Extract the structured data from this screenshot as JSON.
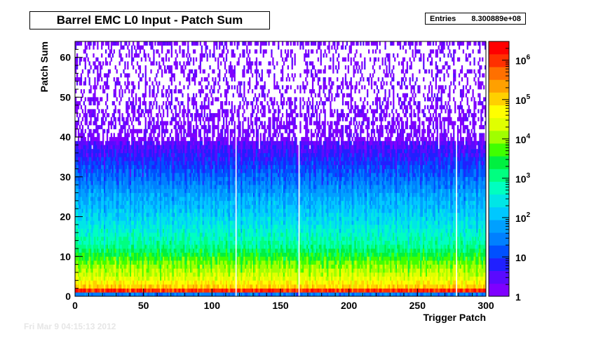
{
  "title": "Barrel EMC L0 Input - Patch Sum",
  "stats": {
    "label": "Entries",
    "value": "8.300889e+08"
  },
  "footer_stamp": "Fri Mar  9 04:15:13 2012",
  "chart_data": {
    "type": "heatmap",
    "title": "Barrel EMC L0 Input - Patch Sum",
    "xlabel": "Trigger Patch",
    "ylabel": "Patch Sum",
    "xlim": [
      0,
      300
    ],
    "ylim": [
      0,
      64
    ],
    "x_bins": 300,
    "y_bins": 64,
    "z_scale": "log",
    "zlim": [
      1,
      3000000
    ],
    "x_ticks": [
      0,
      50,
      100,
      150,
      200,
      250,
      300
    ],
    "y_ticks": [
      0,
      10,
      20,
      30,
      40,
      50,
      60
    ],
    "z_ticks": [
      {
        "value": 1,
        "label": "1"
      },
      {
        "value": 10,
        "label": "10"
      },
      {
        "value": 100,
        "label": "10",
        "exp": "2"
      },
      {
        "value": 1000,
        "label": "10",
        "exp": "3"
      },
      {
        "value": 10000,
        "label": "10",
        "exp": "4"
      },
      {
        "value": 100000,
        "label": "10",
        "exp": "5"
      },
      {
        "value": 1000000,
        "label": "10",
        "exp": "6"
      }
    ],
    "empty_patches": [
      117,
      163,
      278
    ],
    "row_profile": [
      {
        "patch_sum": 0,
        "count": 40
      },
      {
        "patch_sum": 1,
        "count": 1500000
      },
      {
        "patch_sum": 2,
        "count": 150000
      },
      {
        "patch_sum": 4,
        "count": 40000
      },
      {
        "patch_sum": 8,
        "count": 10000
      },
      {
        "patch_sum": 12,
        "count": 1500
      },
      {
        "patch_sum": 18,
        "count": 350
      },
      {
        "patch_sum": 25,
        "count": 90
      },
      {
        "patch_sum": 30,
        "count": 25
      },
      {
        "patch_sum": 35,
        "count": 8
      },
      {
        "patch_sum": 40,
        "count": 2.5
      },
      {
        "patch_sum": 50,
        "count": 1.3
      },
      {
        "patch_sum": 62,
        "count": 1
      },
      {
        "patch_sum": 63,
        "count": 3
      }
    ],
    "palette": [
      "#7f00ff",
      "#5a0aff",
      "#2020ff",
      "#0050ff",
      "#0080ff",
      "#00a0ff",
      "#00c8ff",
      "#00e6e6",
      "#00ffc0",
      "#00ff80",
      "#00f040",
      "#40ff00",
      "#a0ff00",
      "#e0ff00",
      "#ffff00",
      "#ffd000",
      "#ffa000",
      "#ff7000",
      "#ff3000",
      "#ff0000"
    ]
  }
}
